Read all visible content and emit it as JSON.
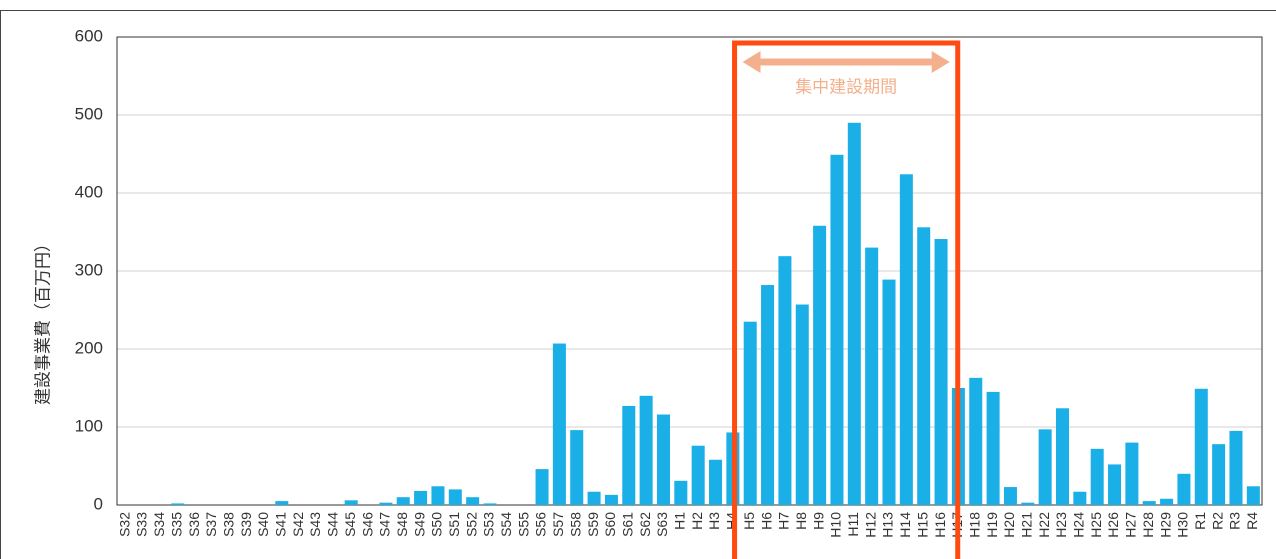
{
  "chart_data": {
    "type": "bar",
    "y_label": "建設事業費（百万円）",
    "categories": [
      "S32",
      "S33",
      "S34",
      "S35",
      "S36",
      "S37",
      "S38",
      "S39",
      "S40",
      "S41",
      "S42",
      "S43",
      "S44",
      "S45",
      "S46",
      "S47",
      "S48",
      "S49",
      "S50",
      "S51",
      "S52",
      "S53",
      "S54",
      "S55",
      "S56",
      "S57",
      "S58",
      "S59",
      "S60",
      "S61",
      "S62",
      "S63",
      "H1",
      "H2",
      "H3",
      "H4",
      "H5",
      "H6",
      "H7",
      "H8",
      "H9",
      "H10",
      "H11",
      "H12",
      "H13",
      "H14",
      "H15",
      "H16",
      "H17",
      "H18",
      "H19",
      "H20",
      "H21",
      "H22",
      "H23",
      "H24",
      "H25",
      "H26",
      "H27",
      "H28",
      "H29",
      "H30",
      "R1",
      "R2",
      "R3",
      "R4"
    ],
    "values": [
      0,
      0,
      0,
      2,
      0,
      0,
      0,
      0,
      0,
      5,
      0,
      0,
      0,
      6,
      0,
      3,
      10,
      18,
      24,
      20,
      10,
      2,
      0,
      0,
      46,
      207,
      96,
      17,
      13,
      127,
      140,
      116,
      31,
      76,
      58,
      93,
      235,
      282,
      319,
      257,
      358,
      449,
      490,
      330,
      289,
      424,
      356,
      341,
      150,
      163,
      145,
      23,
      3,
      97,
      124,
      17,
      72,
      52,
      80,
      5,
      8,
      40,
      149,
      78,
      95,
      24
    ],
    "color": "#1aafe6",
    "ylim": [
      0,
      600
    ],
    "yticks": [
      0,
      100,
      200,
      300,
      400,
      500,
      600
    ],
    "grid": true,
    "highlight": {
      "label": "集中建設期間",
      "from": "H5",
      "to": "H16",
      "color": "#ff4a12",
      "arrow_color": "#f4b08c"
    }
  }
}
